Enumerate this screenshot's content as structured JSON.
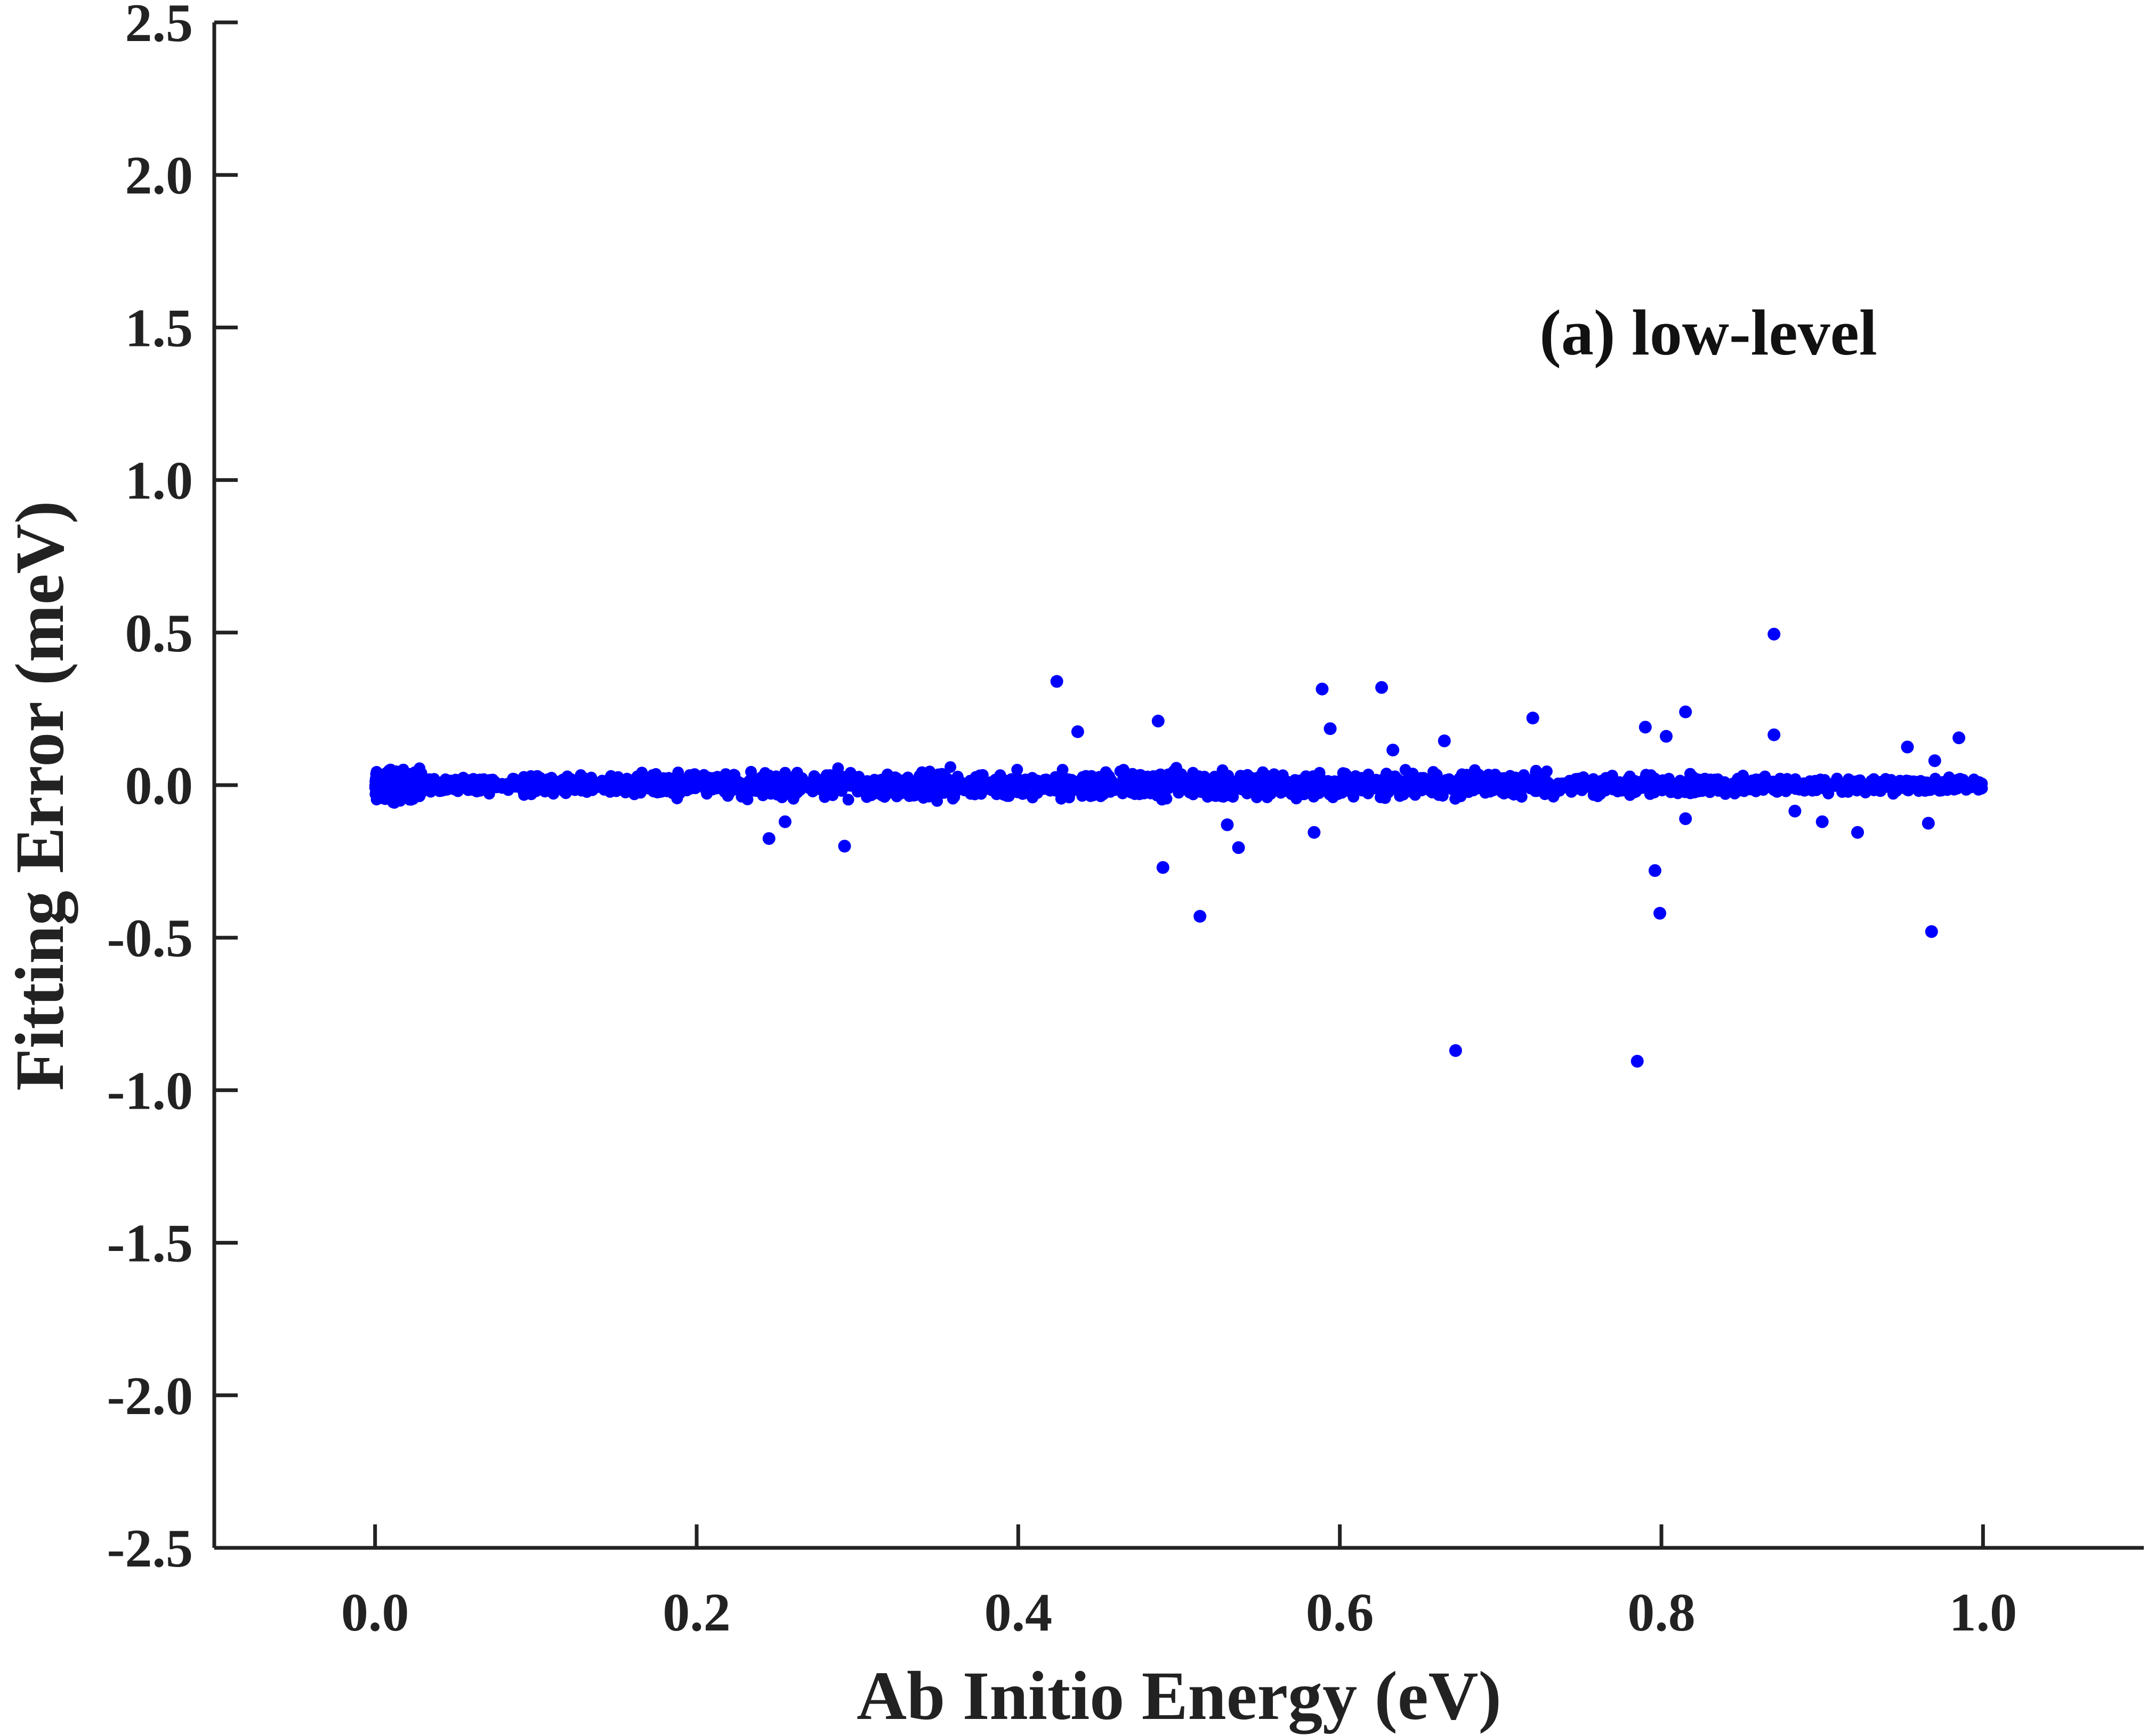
{
  "chart_data": {
    "type": "scatter",
    "xlabel": "Ab Initio Energy (eV)",
    "ylabel": "Fitting Error (meV)",
    "xlim": [
      -0.1,
      1.1
    ],
    "ylim": [
      -2.5,
      2.5
    ],
    "xticks": [
      "0.0",
      "0.2",
      "0.4",
      "0.6",
      "0.8",
      "1.0"
    ],
    "xtick_values": [
      0.0,
      0.2,
      0.4,
      0.6,
      0.8,
      1.0
    ],
    "yticks": [
      "-2.5",
      "-2.0",
      "-1.5",
      "-1.0",
      "-0.5",
      "0.0",
      "0.5",
      "1.0",
      "1.5",
      "2.0",
      "2.5"
    ],
    "ytick_values": [
      -2.5,
      -2.0,
      -1.5,
      -1.0,
      -0.5,
      0.0,
      0.5,
      1.0,
      1.5,
      2.0,
      2.5
    ],
    "annotation": "(a) low-level",
    "grid": false,
    "marker_color": "#0000ff",
    "series": [
      {
        "band": {
          "x_range": [
            0.0,
            1.0
          ],
          "y_spread": 0.045
        },
        "points": [
          [
            0.424,
            0.34
          ],
          [
            0.437,
            0.175
          ],
          [
            0.487,
            0.21
          ],
          [
            0.589,
            0.315
          ],
          [
            0.594,
            0.185
          ],
          [
            0.626,
            0.32
          ],
          [
            0.633,
            0.115
          ],
          [
            0.665,
            0.145
          ],
          [
            0.72,
            0.22
          ],
          [
            0.79,
            0.19
          ],
          [
            0.803,
            0.16
          ],
          [
            0.815,
            0.24
          ],
          [
            0.87,
            0.495
          ],
          [
            0.87,
            0.165
          ],
          [
            0.953,
            0.125
          ],
          [
            0.985,
            0.155
          ],
          [
            0.97,
            0.08
          ],
          [
            0.245,
            -0.175
          ],
          [
            0.255,
            -0.12
          ],
          [
            0.292,
            -0.2
          ],
          [
            0.49,
            -0.27
          ],
          [
            0.513,
            -0.43
          ],
          [
            0.53,
            -0.13
          ],
          [
            0.537,
            -0.205
          ],
          [
            0.584,
            -0.155
          ],
          [
            0.672,
            -0.87
          ],
          [
            0.785,
            -0.905
          ],
          [
            0.796,
            -0.28
          ],
          [
            0.799,
            -0.42
          ],
          [
            0.815,
            -0.11
          ],
          [
            0.883,
            -0.085
          ],
          [
            0.922,
            -0.155
          ],
          [
            0.966,
            -0.125
          ],
          [
            0.968,
            -0.48
          ],
          [
            0.9,
            -0.12
          ]
        ]
      }
    ]
  }
}
